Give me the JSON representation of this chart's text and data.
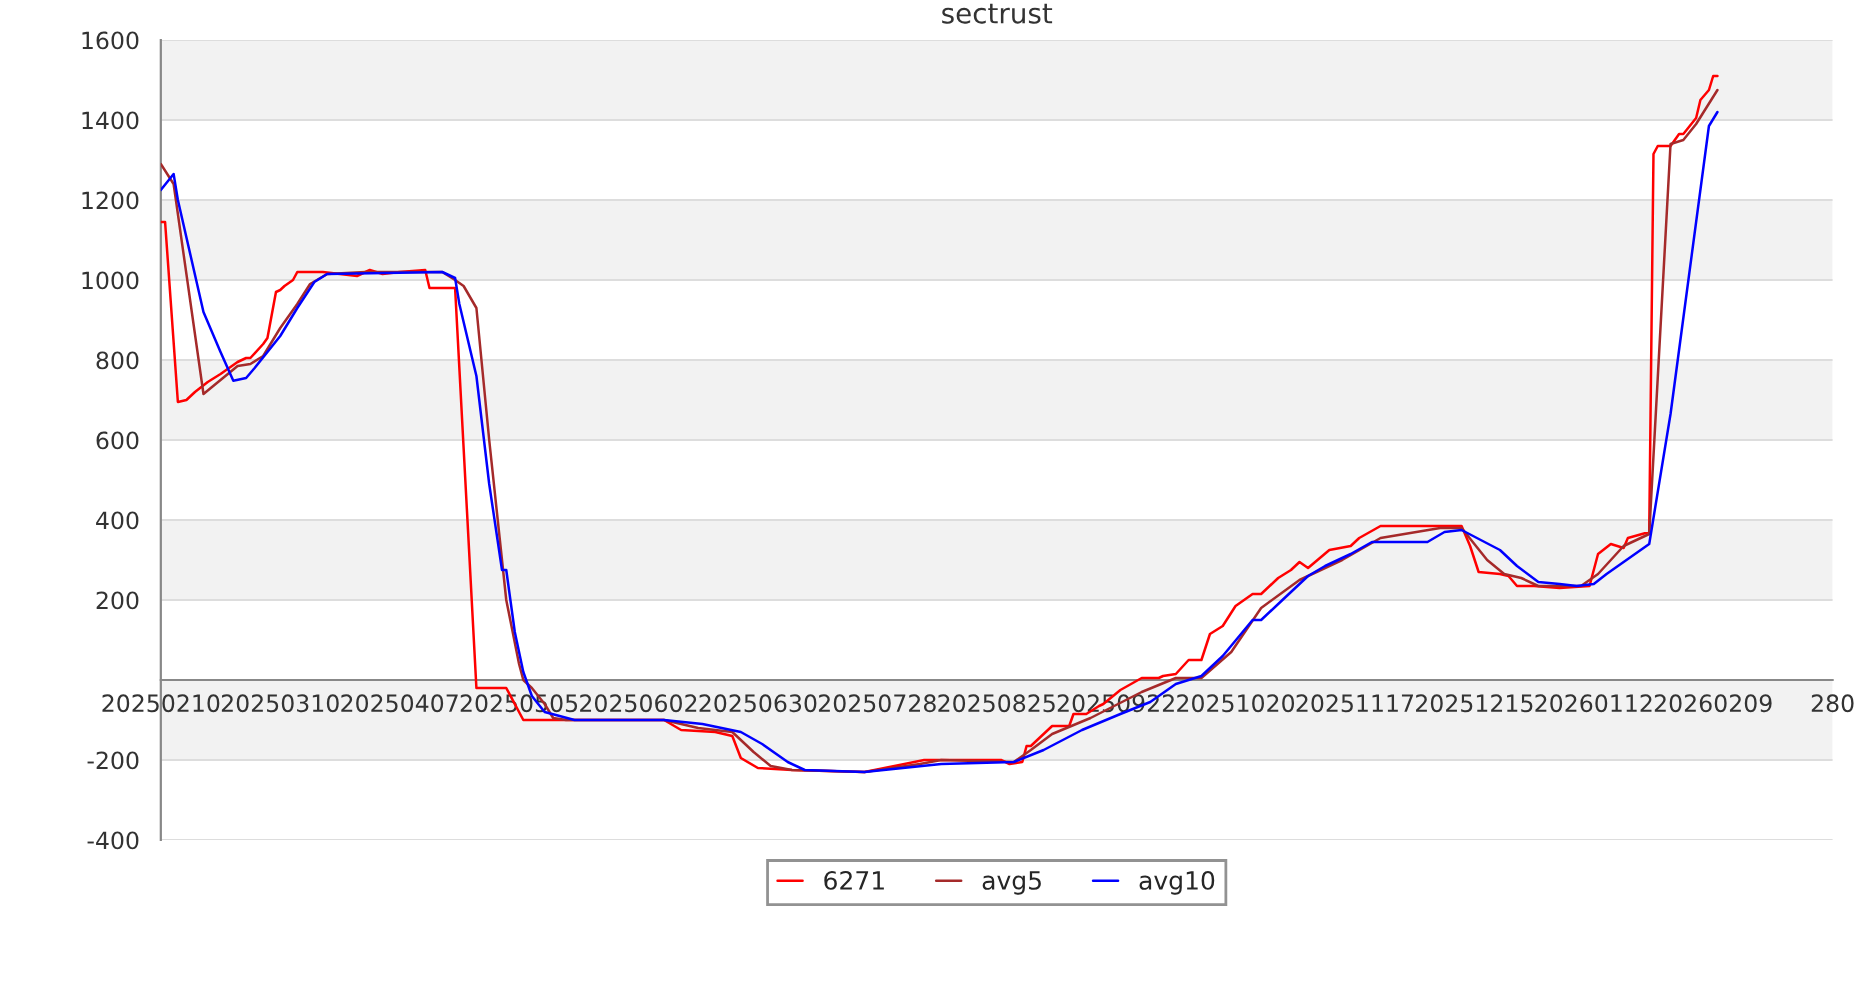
{
  "chart_data": {
    "type": "line",
    "title": "sectrust",
    "xlim": [
      "2025-02-10",
      "2026-03-09"
    ],
    "xticks": [
      {
        "value": "2025-02-10",
        "label": "20250210"
      },
      {
        "value": "2025-03-10",
        "label": "20250310"
      },
      {
        "value": "2025-04-07",
        "label": "20250407"
      },
      {
        "value": "2025-05-05",
        "label": "20250505"
      },
      {
        "value": "2025-06-02",
        "label": "20250602"
      },
      {
        "value": "2025-06-30",
        "label": "20250630"
      },
      {
        "value": "2025-07-28",
        "label": "20250728"
      },
      {
        "value": "2025-08-25",
        "label": "20250825"
      },
      {
        "value": "2025-09-22",
        "label": "20250922"
      },
      {
        "value": "2025-10-20",
        "label": "20251020"
      },
      {
        "value": "2025-11-17",
        "label": "20251117"
      },
      {
        "value": "2025-12-15",
        "label": "20251215"
      },
      {
        "value": "2026-01-12",
        "label": "20260112"
      },
      {
        "value": "2026-02-09",
        "label": "20260209"
      },
      {
        "value": "2026-03-09",
        "label": "280"
      }
    ],
    "ylim": [
      -400,
      1600
    ],
    "yticks": [
      -400,
      -200,
      {
        "value": 0,
        "label": null
      },
      200,
      400,
      600,
      800,
      1000,
      1200,
      1400,
      1600
    ],
    "grid": "y",
    "legend": "bottom",
    "marker": "none",
    "line_style": "solid",
    "bands": [
      {
        "axis": "y",
        "from": 1400,
        "to": 1600,
        "color": "#f2f2f2"
      },
      {
        "axis": "y",
        "from": 1000,
        "to": 1200,
        "color": "#f2f2f2"
      },
      {
        "axis": "y",
        "from": 600,
        "to": 800,
        "color": "#f2f2f2"
      },
      {
        "axis": "y",
        "from": 200,
        "to": 400,
        "color": "#f2f2f2"
      },
      {
        "axis": "y",
        "from": -200,
        "to": 0,
        "color": "#f2f2f2"
      }
    ],
    "series": [
      {
        "name": "6271",
        "color": "#ff0000",
        "x": [
          "2025-02-10",
          "2025-02-11",
          "2025-02-14",
          "2025-02-16",
          "2025-02-18",
          "2025-02-21",
          "2025-02-24",
          "2025-02-28",
          "2025-03-02",
          "2025-03-03",
          "2025-03-06",
          "2025-03-07",
          "2025-03-09",
          "2025-03-10",
          "2025-03-11",
          "2025-03-13",
          "2025-03-14",
          "2025-03-20",
          "2025-03-28",
          "2025-03-31",
          "2025-04-03",
          "2025-04-07",
          "2025-04-13",
          "2025-04-14",
          "2025-04-20",
          "2025-04-25",
          "2025-05-02",
          "2025-05-06",
          "2025-06-08",
          "2025-06-12",
          "2025-06-20",
          "2025-06-24",
          "2025-06-26",
          "2025-06-30",
          "2025-07-08",
          "2025-07-25",
          "2025-08-08",
          "2025-08-26",
          "2025-08-28",
          "2025-08-31",
          "2025-09-01",
          "2025-09-02",
          "2025-09-07",
          "2025-09-11",
          "2025-09-12",
          "2025-09-15",
          "2025-09-18",
          "2025-09-19",
          "2025-09-23",
          "2025-09-28",
          "2025-10-02",
          "2025-10-03",
          "2025-10-06",
          "2025-10-09",
          "2025-10-12",
          "2025-10-14",
          "2025-10-17",
          "2025-10-20",
          "2025-10-24",
          "2025-10-26",
          "2025-10-30",
          "2025-11-02",
          "2025-11-04",
          "2025-11-06",
          "2025-11-11",
          "2025-11-16",
          "2025-11-18",
          "2025-11-23",
          "2025-12-12",
          "2025-12-14",
          "2025-12-16",
          "2025-12-21",
          "2025-12-23",
          "2025-12-25",
          "2025-12-29",
          "2026-01-04",
          "2026-01-11",
          "2026-01-13",
          "2026-01-16",
          "2026-01-19",
          "2026-01-20",
          "2026-01-25",
          "2026-01-26",
          "2026-01-27",
          "2026-01-30",
          "2026-02-01",
          "2026-02-02",
          "2026-02-05",
          "2026-02-06",
          "2026-02-08",
          "2026-02-09",
          "2026-02-10"
        ],
        "values": [
          1145,
          1145,
          695,
          700,
          720,
          745,
          765,
          795,
          805,
          805,
          840,
          855,
          970,
          975,
          985,
          1000,
          1020,
          1020,
          1010,
          1025,
          1015,
          1020,
          1025,
          980,
          980,
          -20,
          -20,
          -100,
          -100,
          -125,
          -130,
          -140,
          -195,
          -220,
          -225,
          -230,
          -200,
          -200,
          -210,
          -205,
          -165,
          -165,
          -115,
          -115,
          -85,
          -85,
          -65,
          -60,
          -25,
          5,
          5,
          10,
          15,
          50,
          50,
          115,
          135,
          185,
          215,
          215,
          255,
          275,
          295,
          280,
          325,
          335,
          355,
          385,
          385,
          335,
          270,
          265,
          260,
          235,
          235,
          230,
          235,
          315,
          340,
          330,
          355,
          370,
          1315,
          1335,
          1335,
          1365,
          1365,
          1405,
          1450,
          1475,
          1510,
          1510
        ]
      },
      {
        "name": "avg5",
        "color": "#a52a2a",
        "x": [
          "2025-02-10",
          "2025-02-13",
          "2025-02-20",
          "2025-02-24",
          "2025-02-28",
          "2025-03-03",
          "2025-03-06",
          "2025-03-10",
          "2025-03-14",
          "2025-03-17",
          "2025-03-21",
          "2025-03-30",
          "2025-04-17",
          "2025-04-20",
          "2025-04-22",
          "2025-04-25",
          "2025-04-28",
          "2025-05-02",
          "2025-05-05",
          "2025-05-06",
          "2025-05-08",
          "2025-05-11",
          "2025-05-13",
          "2025-05-16",
          "2025-06-08",
          "2025-06-16",
          "2025-06-24",
          "2025-06-29",
          "2025-07-03",
          "2025-07-08",
          "2025-07-25",
          "2025-08-07",
          "2025-08-12",
          "2025-08-29",
          "2025-09-02",
          "2025-09-07",
          "2025-09-16",
          "2025-09-28",
          "2025-10-06",
          "2025-10-12",
          "2025-10-19",
          "2025-10-26",
          "2025-11-04",
          "2025-11-14",
          "2025-11-23",
          "2025-12-07",
          "2025-12-12",
          "2025-12-18",
          "2025-12-22",
          "2025-12-26",
          "2025-12-30",
          "2026-01-09",
          "2026-01-13",
          "2026-01-19",
          "2026-01-25",
          "2026-01-30",
          "2026-02-02",
          "2026-02-05",
          "2026-02-10"
        ],
        "values": [
          1290,
          1240,
          715,
          750,
          785,
          790,
          810,
          880,
          940,
          990,
          1015,
          1020,
          1020,
          1000,
          985,
          930,
          600,
          200,
          40,
          0,
          -20,
          -60,
          -95,
          -100,
          -100,
          -120,
          -130,
          -180,
          -215,
          -225,
          -230,
          -210,
          -200,
          -205,
          -175,
          -135,
          -95,
          -30,
          5,
          5,
          70,
          180,
          250,
          300,
          355,
          380,
          380,
          300,
          265,
          255,
          235,
          235,
          265,
          335,
          365,
          1340,
          1350,
          1390,
          1475
        ]
      },
      {
        "name": "avg10",
        "color": "#0000ff",
        "x": [
          "2025-02-10",
          "2025-02-13",
          "2025-02-14",
          "2025-02-20",
          "2025-02-24",
          "2025-02-27",
          "2025-03-02",
          "2025-03-04",
          "2025-03-10",
          "2025-03-14",
          "2025-03-18",
          "2025-03-21",
          "2025-04-17",
          "2025-04-20",
          "2025-04-21",
          "2025-04-25",
          "2025-04-28",
          "2025-05-01",
          "2025-05-02",
          "2025-05-04",
          "2025-05-06",
          "2025-05-08",
          "2025-05-11",
          "2025-05-18",
          "2025-06-08",
          "2025-06-17",
          "2025-06-26",
          "2025-07-01",
          "2025-07-07",
          "2025-07-11",
          "2025-07-25",
          "2025-08-12",
          "2025-08-29",
          "2025-09-05",
          "2025-09-14",
          "2025-09-23",
          "2025-09-30",
          "2025-10-06",
          "2025-10-12",
          "2025-10-17",
          "2025-10-24",
          "2025-10-26",
          "2025-10-31",
          "2025-11-06",
          "2025-11-10",
          "2025-11-16",
          "2025-11-21",
          "2025-12-04",
          "2025-12-08",
          "2025-12-12",
          "2025-12-21",
          "2025-12-25",
          "2025-12-30",
          "2026-01-04",
          "2026-01-08",
          "2026-01-12",
          "2026-01-15",
          "2026-01-25",
          "2026-01-30",
          "2026-02-08",
          "2026-02-10"
        ],
        "values": [
          1225,
          1265,
          1200,
          920,
          820,
          748,
          755,
          780,
          860,
          930,
          995,
          1015,
          1020,
          1005,
          940,
          760,
          490,
          275,
          275,
          120,
          20,
          -40,
          -80,
          -100,
          -100,
          -110,
          -130,
          -160,
          -205,
          -225,
          -230,
          -210,
          -205,
          -175,
          -125,
          -85,
          -55,
          -10,
          10,
          60,
          150,
          150,
          200,
          260,
          285,
          315,
          345,
          345,
          370,
          375,
          325,
          285,
          245,
          240,
          235,
          240,
          265,
          340,
          665,
          1385,
          1420
        ]
      }
    ]
  }
}
